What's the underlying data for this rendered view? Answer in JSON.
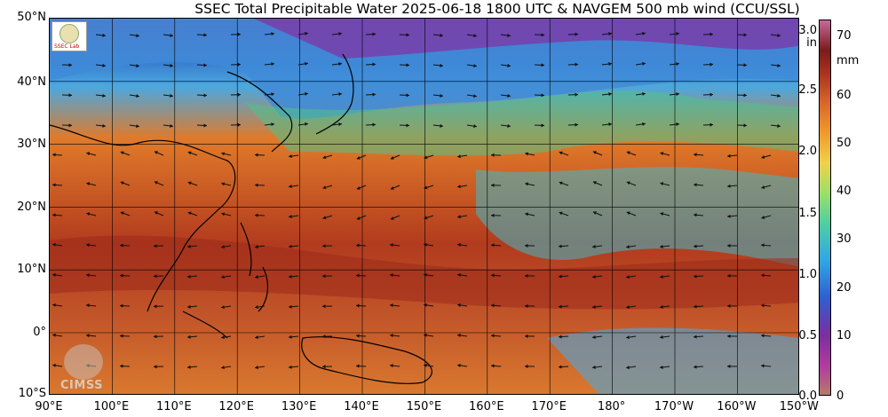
{
  "title": "SSEC Total Precipitable Water  2025-06-18 1800 UTC & NAVGEM 500 mb wind (CCU/SSL)",
  "y_axis": [
    "50°N",
    "40°N",
    "30°N",
    "20°N",
    "10°N",
    "0°",
    "10°S"
  ],
  "x_axis": [
    "90°E",
    "100°E",
    "110°E",
    "120°E",
    "130°E",
    "140°E",
    "150°E",
    "160°E",
    "170°E",
    "180°",
    "170°W",
    "160°W",
    "150°W"
  ],
  "colorbar": {
    "inch_unit": "in",
    "mm_unit": "mm",
    "inch_ticks": [
      "3.0",
      "2.5",
      "2.0",
      "1.5",
      "1.0",
      "0.5",
      "0.0"
    ],
    "mm_ticks": [
      "70",
      "60",
      "50",
      "40",
      "30",
      "20",
      "10",
      "0"
    ]
  },
  "logos": {
    "top_left": "SSEC Lab",
    "bottom_left": "CIMSS"
  }
}
